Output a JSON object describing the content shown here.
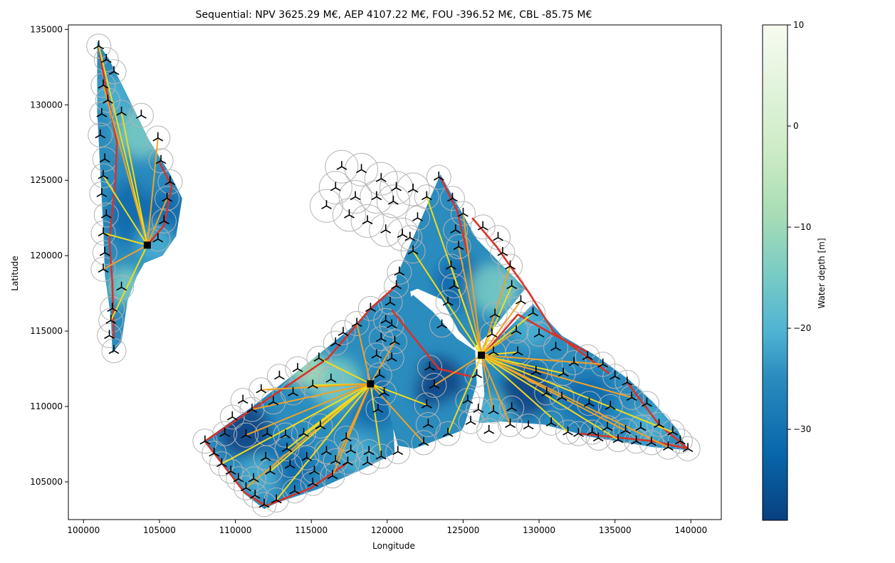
{
  "chart_data": {
    "type": "heatmap",
    "title": "Sequential: NPV 3625.29 M€, AEP 4107.22 M€, FOU -396.52 M€, CBL -85.75 M€",
    "xlabel": "Longitude",
    "ylabel": "Latitude",
    "xlim": [
      99000,
      142000
    ],
    "ylim": [
      102500,
      135300
    ],
    "xticks": [
      100000,
      105000,
      110000,
      115000,
      120000,
      125000,
      130000,
      135000,
      140000
    ],
    "yticks": [
      105000,
      110000,
      115000,
      120000,
      125000,
      130000,
      135000
    ],
    "colorbar": {
      "label": "Water depth [m]",
      "range": [
        -39,
        10
      ],
      "ticks": [
        10,
        0,
        -10,
        -20,
        -30
      ],
      "colormap": "GnBu",
      "colors": [
        "#f7fcf0",
        "#e0f3db",
        "#ccebc5",
        "#a8ddb5",
        "#7bccc4",
        "#4eb3d3",
        "#2b8cbe",
        "#0868ac",
        "#084081"
      ]
    },
    "substations": [
      {
        "x": 104200,
        "y": 120700
      },
      {
        "x": 118900,
        "y": 111500
      },
      {
        "x": 126200,
        "y": 113400
      }
    ],
    "turbine_groups": [
      {
        "name": "west",
        "points": [
          [
            101000,
            133900
          ],
          [
            101500,
            133000
          ],
          [
            102000,
            132200
          ],
          [
            101300,
            131300
          ],
          [
            101600,
            130300
          ],
          [
            101200,
            129400
          ],
          [
            102500,
            129500
          ],
          [
            103800,
            129300
          ],
          [
            101100,
            128000
          ],
          [
            104900,
            127800
          ],
          [
            101400,
            126400
          ],
          [
            105100,
            126300
          ],
          [
            101300,
            125300
          ],
          [
            105700,
            124900
          ],
          [
            101200,
            124100
          ],
          [
            105500,
            123800
          ],
          [
            101500,
            122700
          ],
          [
            105300,
            122300
          ],
          [
            101300,
            121500
          ],
          [
            104900,
            121100
          ],
          [
            101400,
            120200
          ],
          [
            101300,
            119100
          ],
          [
            102500,
            117900
          ],
          [
            101900,
            116500
          ],
          [
            101800,
            115700
          ],
          [
            101700,
            114700
          ],
          [
            102000,
            113700
          ]
        ]
      },
      {
        "name": "cluster",
        "points": [
          [
            117000,
            125900
          ],
          [
            118300,
            125700
          ],
          [
            119600,
            125100
          ],
          [
            120600,
            124500
          ],
          [
            121700,
            124400
          ],
          [
            116600,
            124500
          ],
          [
            117900,
            123900
          ],
          [
            119300,
            123900
          ],
          [
            120400,
            123600
          ],
          [
            116000,
            123300
          ],
          [
            117500,
            122700
          ],
          [
            118700,
            122300
          ],
          [
            119900,
            121700
          ],
          [
            121000,
            121400
          ]
        ]
      },
      {
        "name": "east",
        "points": [
          [
            123400,
            125200
          ],
          [
            122600,
            123900
          ],
          [
            124300,
            123800
          ],
          [
            122000,
            122500
          ],
          [
            125000,
            122800
          ],
          [
            121500,
            121200
          ],
          [
            124500,
            121700
          ],
          [
            121700,
            120300
          ],
          [
            126300,
            121900
          ],
          [
            120800,
            118900
          ],
          [
            124700,
            120600
          ],
          [
            127300,
            121200
          ],
          [
            120600,
            118000
          ],
          [
            124200,
            119300
          ],
          [
            127600,
            120200
          ],
          [
            124400,
            118000
          ],
          [
            128100,
            119300
          ],
          [
            120200,
            116900
          ],
          [
            124000,
            116900
          ],
          [
            128200,
            118000
          ],
          [
            119900,
            115700
          ],
          [
            123600,
            115400
          ],
          [
            128800,
            117000
          ],
          [
            119600,
            114500
          ],
          [
            127100,
            116100
          ],
          [
            129600,
            116200
          ],
          [
            119300,
            113400
          ],
          [
            126900,
            114800
          ],
          [
            128500,
            115000
          ],
          [
            122800,
            112600
          ],
          [
            127000,
            113600
          ],
          [
            128600,
            113600
          ],
          [
            130000,
            114800
          ],
          [
            131100,
            113900
          ],
          [
            123100,
            111400
          ],
          [
            125900,
            112100
          ],
          [
            129800,
            112300
          ],
          [
            131600,
            112200
          ],
          [
            132300,
            112900
          ],
          [
            133200,
            113300
          ],
          [
            134200,
            112800
          ],
          [
            135000,
            112000
          ],
          [
            135800,
            111600
          ],
          [
            122600,
            110100
          ],
          [
            125300,
            110400
          ],
          [
            126000,
            109800
          ],
          [
            127000,
            109700
          ],
          [
            128200,
            109900
          ],
          [
            130500,
            110900
          ],
          [
            131500,
            110600
          ],
          [
            133300,
            110200
          ],
          [
            134700,
            110000
          ],
          [
            136100,
            110600
          ],
          [
            137100,
            110200
          ],
          [
            122700,
            108800
          ],
          [
            124000,
            108200
          ],
          [
            125500,
            109000
          ],
          [
            126700,
            108400
          ],
          [
            128100,
            108800
          ],
          [
            129300,
            108700
          ],
          [
            130800,
            108900
          ],
          [
            131900,
            108300
          ],
          [
            133500,
            108300
          ],
          [
            134500,
            108600
          ],
          [
            135700,
            108400
          ],
          [
            136700,
            108600
          ],
          [
            137900,
            108800
          ],
          [
            138800,
            108300
          ],
          [
            139300,
            107700
          ],
          [
            139800,
            107200
          ],
          [
            122400,
            107600
          ],
          [
            132600,
            108200
          ],
          [
            133900,
            107900
          ],
          [
            135200,
            107800
          ],
          [
            136400,
            107700
          ],
          [
            137400,
            107600
          ],
          [
            138500,
            107300
          ]
        ]
      },
      {
        "name": "south",
        "points": [
          [
            108000,
            107700
          ],
          [
            108600,
            106900
          ],
          [
            109100,
            106200
          ],
          [
            109700,
            105700
          ],
          [
            110200,
            105200
          ],
          [
            110700,
            104600
          ],
          [
            111300,
            104100
          ],
          [
            111900,
            103500
          ],
          [
            112700,
            103800
          ],
          [
            113900,
            104400
          ],
          [
            115100,
            104900
          ],
          [
            116400,
            105400
          ],
          [
            117400,
            106300
          ],
          [
            118700,
            106300
          ],
          [
            119600,
            106700
          ],
          [
            120700,
            107000
          ],
          [
            109300,
            108200
          ],
          [
            110700,
            108100
          ],
          [
            112100,
            108200
          ],
          [
            113300,
            108100
          ],
          [
            114500,
            108200
          ],
          [
            115600,
            108700
          ],
          [
            109800,
            109300
          ],
          [
            111100,
            109800
          ],
          [
            112500,
            110300
          ],
          [
            113800,
            110900
          ],
          [
            115100,
            111400
          ],
          [
            116300,
            111800
          ],
          [
            110500,
            110400
          ],
          [
            111700,
            111100
          ],
          [
            112900,
            112000
          ],
          [
            114100,
            112500
          ],
          [
            115500,
            113200
          ],
          [
            116600,
            114200
          ],
          [
            117100,
            114900
          ],
          [
            118000,
            115500
          ],
          [
            118900,
            116500
          ],
          [
            112000,
            106600
          ],
          [
            113400,
            107200
          ],
          [
            114700,
            106600
          ],
          [
            116000,
            107000
          ],
          [
            117300,
            107900
          ],
          [
            118800,
            107000
          ],
          [
            111200,
            105200
          ],
          [
            112300,
            105700
          ],
          [
            113600,
            106100
          ],
          [
            115200,
            105700
          ],
          [
            116600,
            106400
          ],
          [
            117600,
            107100
          ],
          [
            119400,
            109800
          ],
          [
            119800,
            110900
          ],
          [
            119500,
            112100
          ],
          [
            120300,
            113200
          ],
          [
            120500,
            114300
          ],
          [
            120300,
            115400
          ]
        ]
      }
    ],
    "cable_colors": {
      "light": "#f2dc1a",
      "medium": "#f0a225",
      "heavy": "#e0702a",
      "max": "#d83228"
    }
  }
}
